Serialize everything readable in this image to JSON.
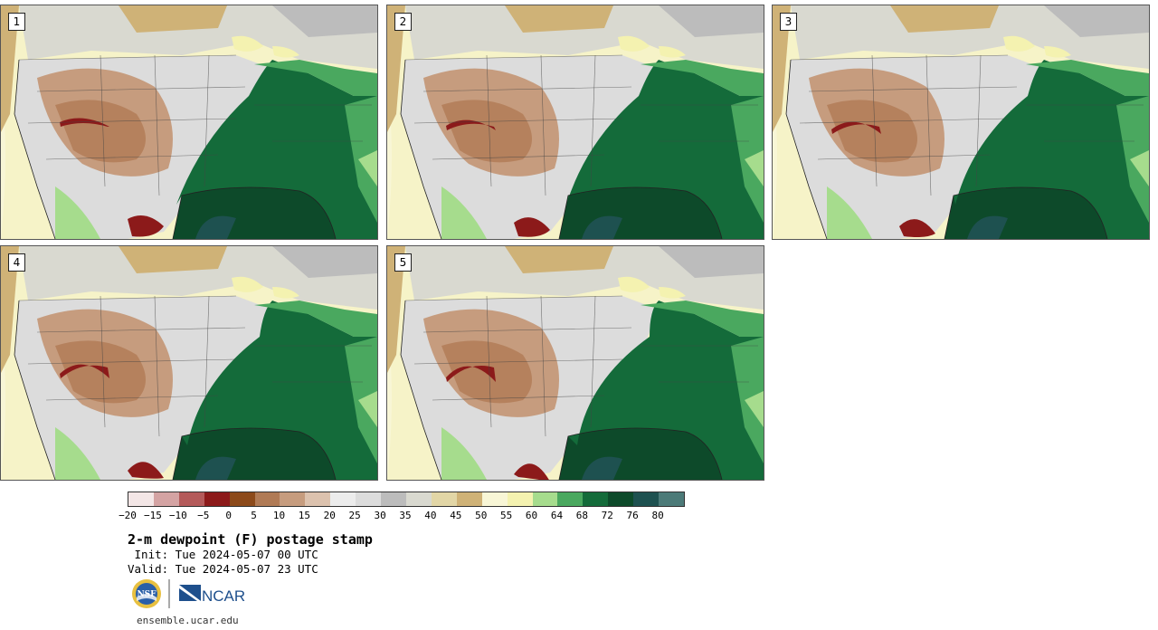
{
  "panels": [
    {
      "label": "1"
    },
    {
      "label": "2"
    },
    {
      "label": "3"
    },
    {
      "label": "4"
    },
    {
      "label": "5"
    }
  ],
  "colorbar": {
    "colors": [
      "#f3e6e6",
      "#d4a3a3",
      "#b45a5a",
      "#8c1a1a",
      "#8c4a1a",
      "#b07a55",
      "#c69c7e",
      "#dcc2ae",
      "#ececec",
      "#dcdcdc",
      "#bcbcbc",
      "#d9d9d0",
      "#e2d6a6",
      "#cfb277",
      "#f8f6d6",
      "#f4f2b0",
      "#a6dc8d",
      "#4aa85f",
      "#146b3a",
      "#0d4a2a",
      "#1e5150",
      "#4c7a78"
    ],
    "ticks": [
      "−20",
      "−15",
      "−10",
      "−5",
      "0",
      "5",
      "10",
      "15",
      "20",
      "25",
      "30",
      "35",
      "40",
      "45",
      "50",
      "55",
      "60",
      "64",
      "68",
      "72",
      "76",
      "80"
    ]
  },
  "title": "2-m dewpoint (F) postage stamp",
  "init": " Init: Tue 2024-05-07 00 UTC",
  "valid": "Valid: Tue 2024-05-07 23 UTC",
  "logos": {
    "nsf": "NSF",
    "ncar": "NCAR"
  },
  "footer": "ensemble.ucar.edu"
}
